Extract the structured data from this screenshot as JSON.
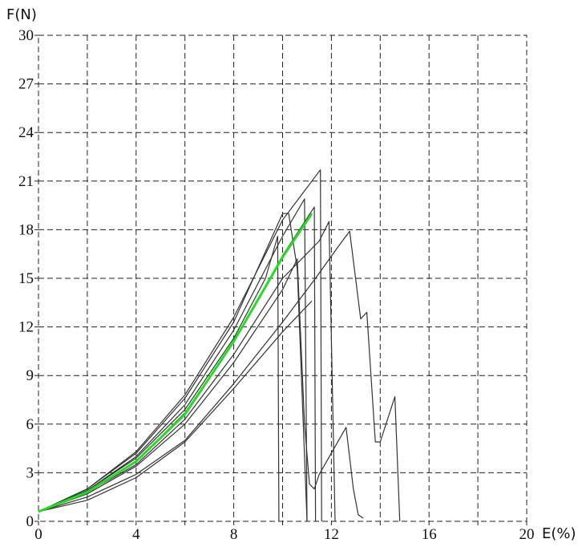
{
  "chart_data": {
    "type": "line",
    "title": "",
    "xlabel": "E(%)",
    "ylabel": "F(N)",
    "xlim": [
      0,
      20
    ],
    "ylim": [
      0,
      30
    ],
    "x_ticks": [
      0,
      2,
      4,
      6,
      8,
      10,
      12,
      14,
      16,
      18,
      20
    ],
    "x_tick_labels": [
      "0",
      "",
      "4",
      "",
      "8",
      "",
      "12",
      "",
      "16",
      "",
      "20"
    ],
    "y_ticks": [
      0,
      3,
      6,
      9,
      12,
      15,
      18,
      21,
      24,
      27,
      30
    ],
    "y_tick_labels": [
      "0",
      "3",
      "6",
      "9",
      "12",
      "15",
      "18",
      "21",
      "24",
      "27",
      "30"
    ],
    "grid": true,
    "grid_style": "dashed",
    "colors": {
      "specimen": "#333333",
      "average": "#22dd22"
    },
    "series": [
      {
        "values": [
          [
            0,
            0.6
          ],
          [
            2,
            1.9
          ],
          [
            4,
            3.9
          ],
          [
            6,
            6.9
          ],
          [
            8,
            11.3
          ],
          [
            9.3,
            15.0
          ],
          [
            9.8,
            17.6
          ],
          [
            9.85,
            0
          ]
        ]
      },
      {
        "values": [
          [
            0,
            0.6
          ],
          [
            2,
            2.0
          ],
          [
            4,
            4.2
          ],
          [
            6,
            7.6
          ],
          [
            8,
            12.3
          ],
          [
            10,
            19.0
          ],
          [
            10.25,
            19.0
          ],
          [
            10.6,
            15.6
          ],
          [
            11.0,
            0
          ]
        ]
      },
      {
        "values": [
          [
            0,
            0.6
          ],
          [
            2,
            1.9
          ],
          [
            4,
            4.0
          ],
          [
            6,
            7.2
          ],
          [
            8,
            11.8
          ],
          [
            10,
            17.6
          ],
          [
            10.9,
            19.9
          ],
          [
            11.0,
            0
          ]
        ]
      },
      {
        "values": [
          [
            0,
            0.6
          ],
          [
            2,
            1.8
          ],
          [
            4,
            3.7
          ],
          [
            6,
            6.7
          ],
          [
            8,
            11.1
          ],
          [
            10,
            16.4
          ],
          [
            11.3,
            19.4
          ],
          [
            11.35,
            0
          ]
        ]
      },
      {
        "values": [
          [
            0,
            0.6
          ],
          [
            2,
            2.0
          ],
          [
            4,
            4.3
          ],
          [
            6,
            7.8
          ],
          [
            8,
            12.6
          ],
          [
            10,
            18.6
          ],
          [
            11.55,
            21.7
          ],
          [
            11.6,
            0
          ]
        ]
      },
      {
        "values": [
          [
            0,
            0.6
          ],
          [
            2,
            1.8
          ],
          [
            4,
            3.5
          ],
          [
            6,
            6.3
          ],
          [
            8,
            10.3
          ],
          [
            10,
            15.0
          ],
          [
            11.5,
            17.3
          ],
          [
            11.9,
            18.5
          ],
          [
            12.15,
            0
          ]
        ]
      },
      {
        "values": [
          [
            0,
            0.6
          ],
          [
            2,
            1.7
          ],
          [
            4,
            3.4
          ],
          [
            6,
            6.0
          ],
          [
            8,
            9.8
          ],
          [
            10,
            14.3
          ],
          [
            10.6,
            16.2
          ],
          [
            10.9,
            6.0
          ],
          [
            11.1,
            2.3
          ],
          [
            11.3,
            2.0
          ],
          [
            11.5,
            2.9
          ],
          [
            12.6,
            5.8
          ],
          [
            12.9,
            2.0
          ],
          [
            13.1,
            0.4
          ],
          [
            13.3,
            0.2
          ]
        ]
      },
      {
        "values": [
          [
            0,
            0.6
          ],
          [
            2,
            1.5
          ],
          [
            4,
            2.9
          ],
          [
            6,
            5.0
          ],
          [
            8,
            8.5
          ],
          [
            10,
            12.3
          ],
          [
            11.3,
            14.9
          ],
          [
            12.3,
            17.0
          ],
          [
            12.75,
            17.9
          ],
          [
            13.2,
            12.5
          ],
          [
            13.45,
            12.9
          ],
          [
            13.8,
            4.9
          ],
          [
            14.0,
            4.9
          ],
          [
            14.6,
            7.7
          ],
          [
            14.8,
            0
          ]
        ]
      },
      {
        "values": [
          [
            0,
            0.6
          ],
          [
            2,
            1.3
          ],
          [
            4,
            2.7
          ],
          [
            6,
            4.9
          ],
          [
            8,
            8.2
          ],
          [
            10,
            11.7
          ],
          [
            11.2,
            13.6
          ]
        ]
      }
    ],
    "average_curve": {
      "values": [
        [
          0,
          0.6
        ],
        [
          2,
          1.8
        ],
        [
          4,
          3.7
        ],
        [
          6,
          6.6
        ],
        [
          8,
          11.1
        ],
        [
          10,
          16.3
        ],
        [
          11.2,
          19.0
        ]
      ]
    }
  }
}
